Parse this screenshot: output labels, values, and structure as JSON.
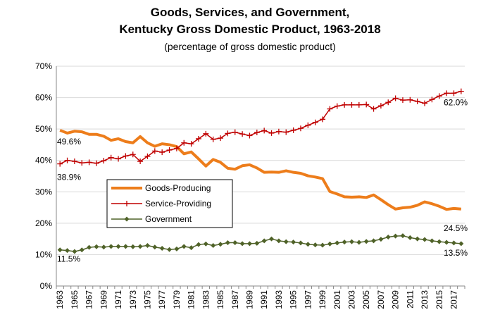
{
  "chart_data": {
    "type": "line",
    "title_line1": "Goods, Services, and Government,",
    "title_line2": "Kentucky Gross Domestic Product, 1963-2018",
    "subtitle": "(percentage of gross domestic product)",
    "xlabel": "",
    "ylabel": "",
    "ylim": [
      0,
      70
    ],
    "y_ticks": [
      "0%",
      "10%",
      "20%",
      "30%",
      "40%",
      "50%",
      "60%",
      "70%"
    ],
    "x": [
      1963,
      1964,
      1965,
      1966,
      1967,
      1968,
      1969,
      1970,
      1971,
      1972,
      1973,
      1974,
      1975,
      1976,
      1977,
      1978,
      1979,
      1980,
      1981,
      1982,
      1983,
      1984,
      1985,
      1986,
      1987,
      1988,
      1989,
      1990,
      1991,
      1992,
      1993,
      1994,
      1995,
      1996,
      1997,
      1998,
      1999,
      2000,
      2001,
      2002,
      2003,
      2004,
      2005,
      2006,
      2007,
      2008,
      2009,
      2010,
      2011,
      2012,
      2013,
      2014,
      2015,
      2016,
      2017,
      2018
    ],
    "x_tick_labels": [
      "1963",
      "1965",
      "1967",
      "1969",
      "1971",
      "1973",
      "1975",
      "1977",
      "1979",
      "1981",
      "1983",
      "1985",
      "1987",
      "1989",
      "1991",
      "1993",
      "1995",
      "1997",
      "1999",
      "2001",
      "2003",
      "2005",
      "2007",
      "2009",
      "2011",
      "2013",
      "2015",
      "2017"
    ],
    "grid": true,
    "legend_position": "center-left",
    "series": [
      {
        "name": "Goods-Producing",
        "color": "#ED7D1B",
        "marker": "none",
        "values": [
          49.6,
          48.7,
          49.3,
          49.1,
          48.3,
          48.3,
          47.7,
          46.4,
          46.9,
          46.0,
          45.6,
          47.6,
          45.6,
          44.5,
          45.3,
          45.0,
          44.4,
          42.1,
          42.7,
          40.5,
          38.2,
          40.3,
          39.4,
          37.5,
          37.2,
          38.3,
          38.6,
          37.6,
          36.2,
          36.3,
          36.2,
          36.7,
          36.2,
          35.9,
          35.1,
          34.7,
          34.2,
          30.1,
          29.3,
          28.4,
          28.3,
          28.4,
          28.2,
          29.0,
          27.5,
          25.9,
          24.5,
          24.9,
          25.1,
          25.7,
          26.8,
          26.2,
          25.4,
          24.4,
          24.7,
          24.5
        ],
        "start_label": "49.6%",
        "end_label": "24.5%"
      },
      {
        "name": "Service-Providing",
        "color": "#C00000",
        "marker": "plus",
        "values": [
          38.9,
          40.0,
          39.7,
          39.2,
          39.4,
          39.1,
          39.9,
          40.9,
          40.5,
          41.4,
          41.9,
          39.7,
          41.3,
          43.0,
          42.6,
          43.3,
          43.8,
          45.6,
          45.3,
          46.9,
          48.5,
          46.7,
          47.1,
          48.6,
          49.0,
          48.4,
          47.9,
          48.9,
          49.5,
          48.7,
          49.2,
          49.0,
          49.6,
          50.2,
          51.2,
          52.1,
          53.1,
          56.4,
          57.3,
          57.7,
          57.7,
          57.7,
          57.8,
          56.4,
          57.4,
          58.5,
          59.8,
          59.2,
          59.3,
          58.8,
          58.2,
          59.4,
          60.5,
          61.4,
          61.4,
          62.0
        ],
        "start_label": "38.9%",
        "end_label": "62.0%"
      },
      {
        "name": "Government",
        "color": "#4F6228",
        "marker": "diamond",
        "values": [
          11.5,
          11.3,
          11.0,
          11.5,
          12.3,
          12.5,
          12.4,
          12.6,
          12.6,
          12.6,
          12.5,
          12.6,
          12.9,
          12.4,
          12.0,
          11.6,
          11.8,
          12.6,
          12.2,
          13.2,
          13.4,
          12.9,
          13.3,
          13.8,
          13.8,
          13.5,
          13.5,
          13.6,
          14.4,
          15.0,
          14.4,
          14.1,
          14.0,
          13.7,
          13.3,
          13.1,
          13.0,
          13.4,
          13.7,
          14.0,
          14.1,
          13.9,
          14.2,
          14.4,
          14.9,
          15.6,
          15.9,
          16.0,
          15.4,
          15.0,
          14.8,
          14.4,
          14.1,
          13.9,
          13.7,
          13.5
        ],
        "start_label": "11.5%",
        "end_label": "13.5%"
      }
    ]
  }
}
